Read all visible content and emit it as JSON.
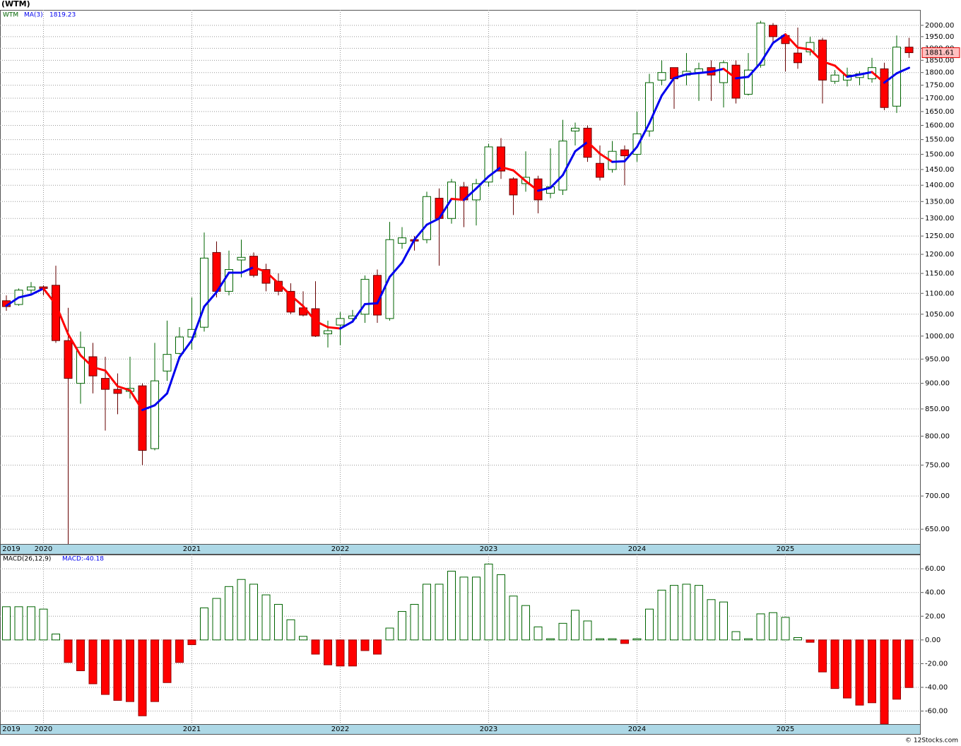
{
  "title": "(WTM)",
  "symbol": "WTM",
  "footer": "© 12Stocks.com",
  "chart_data": [
    {
      "type": "candlestick",
      "categories": [
        "2019",
        null,
        null,
        "2020",
        null,
        null,
        null,
        null,
        null,
        null,
        null,
        null,
        null,
        null,
        null,
        "2021",
        null,
        null,
        null,
        null,
        null,
        null,
        null,
        null,
        null,
        null,
        null,
        "2022",
        null,
        null,
        null,
        null,
        null,
        null,
        null,
        null,
        null,
        null,
        null,
        "2023",
        null,
        null,
        null,
        null,
        null,
        null,
        null,
        null,
        null,
        null,
        null,
        "2024",
        null,
        null,
        null,
        null,
        null,
        null,
        null,
        null,
        null,
        null,
        null,
        "2025",
        null,
        null,
        null,
        null,
        null,
        null,
        null,
        null,
        null,
        null
      ],
      "open": [
        1082,
        1073,
        1108,
        1116,
        1120,
        990,
        900,
        955,
        910,
        888,
        884,
        895,
        778,
        925,
        962,
        998,
        1020,
        1205,
        1105,
        1185,
        1195,
        1160,
        1130,
        1105,
        1065,
        1063,
        1005,
        1025,
        1040,
        1050,
        1145,
        1040,
        1230,
        1240,
        1240,
        1360,
        1300,
        1395,
        1355,
        1410,
        1525,
        1420,
        1405,
        1420,
        1375,
        1385,
        1580,
        1590,
        1470,
        1450,
        1515,
        1500,
        1580,
        1770,
        1820,
        1790,
        1800,
        1820,
        1760,
        1830,
        1715,
        1830,
        2000,
        1955,
        1880,
        1885,
        1935,
        1765,
        1770,
        1780,
        1775,
        1815,
        1670,
        1905
      ],
      "high": [
        1095,
        1112,
        1128,
        1120,
        1170,
        1065,
        1010,
        985,
        955,
        920,
        955,
        900,
        985,
        1035,
        1020,
        1090,
        1260,
        1235,
        1210,
        1240,
        1205,
        1175,
        1150,
        1125,
        1105,
        1130,
        1035,
        1055,
        1060,
        1145,
        1160,
        1290,
        1275,
        1250,
        1380,
        1390,
        1420,
        1410,
        1420,
        1535,
        1555,
        1425,
        1510,
        1430,
        1520,
        1620,
        1610,
        1600,
        1530,
        1545,
        1530,
        1650,
        1795,
        1850,
        1820,
        1880,
        1840,
        1850,
        1850,
        1850,
        1880,
        2020,
        2010,
        1960,
        1990,
        1950,
        1945,
        1810,
        1820,
        1805,
        1860,
        1840,
        1955,
        1945
      ],
      "low": [
        1058,
        1070,
        1100,
        1095,
        985,
        610,
        860,
        880,
        810,
        840,
        870,
        750,
        775,
        905,
        960,
        970,
        1010,
        1090,
        1095,
        1140,
        1140,
        1105,
        1095,
        1050,
        1045,
        998,
        975,
        980,
        1030,
        1030,
        1030,
        1035,
        1215,
        1210,
        1230,
        1170,
        1285,
        1275,
        1280,
        1395,
        1420,
        1310,
        1380,
        1315,
        1360,
        1370,
        1530,
        1475,
        1415,
        1440,
        1400,
        1475,
        1560,
        1750,
        1660,
        1750,
        1690,
        1690,
        1665,
        1680,
        1710,
        1820,
        1920,
        1805,
        1815,
        1870,
        1680,
        1755,
        1745,
        1750,
        1760,
        1655,
        1645,
        1860
      ],
      "close": [
        1068,
        1108,
        1116,
        1112,
        990,
        910,
        975,
        915,
        888,
        880,
        890,
        775,
        905,
        960,
        998,
        1015,
        1190,
        1105,
        1160,
        1192,
        1145,
        1125,
        1105,
        1055,
        1048,
        1000,
        1012,
        1040,
        1046,
        1135,
        1048,
        1240,
        1245,
        1236,
        1365,
        1300,
        1410,
        1355,
        1405,
        1525,
        1445,
        1370,
        1425,
        1355,
        1395,
        1545,
        1590,
        1490,
        1425,
        1510,
        1495,
        1570,
        1760,
        1800,
        1775,
        1805,
        1815,
        1790,
        1840,
        1700,
        1810,
        2010,
        1950,
        1920,
        1840,
        1925,
        1770,
        1790,
        1790,
        1795,
        1820,
        1665,
        1905,
        1881.61
      ],
      "up_color": "#006400",
      "down_color": "#ff0000",
      "ma": {
        "name": "MA(3)",
        "up_color": "#0000ee",
        "down_color": "#ff0000",
        "values": [
          1070,
          1090,
          1097,
          1112,
          1073,
          1004,
          958,
          933,
          926,
          894,
          886,
          848,
          857,
          880,
          954,
          991,
          1068,
          1103,
          1152,
          1152,
          1166,
          1154,
          1125,
          1095,
          1069,
          1034,
          1020,
          1017,
          1033,
          1074,
          1076,
          1141,
          1178,
          1240,
          1282,
          1300,
          1358,
          1355,
          1390,
          1428,
          1458,
          1447,
          1413,
          1383,
          1392,
          1432,
          1510,
          1542,
          1502,
          1475,
          1477,
          1525,
          1608,
          1710,
          1778,
          1793,
          1798,
          1803,
          1815,
          1777,
          1783,
          1840,
          1923,
          1960,
          1903,
          1895,
          1845,
          1828,
          1783,
          1792,
          1802,
          1760,
          1797,
          1819.23
        ]
      },
      "ylim": [
        629,
        2070
      ],
      "log_scale": true,
      "grid": true,
      "yticks": [
        {
          "value": 650,
          "label": "650.00"
        },
        {
          "value": 700,
          "label": "700.00"
        },
        {
          "value": 750,
          "label": "750.00"
        },
        {
          "value": 800,
          "label": "800.00"
        },
        {
          "value": 850,
          "label": "850.00"
        },
        {
          "value": 900,
          "label": "900.00"
        },
        {
          "value": 950,
          "label": "950.00"
        },
        {
          "value": 1000,
          "label": "1000.00"
        },
        {
          "value": 1050,
          "label": "1050.00"
        },
        {
          "value": 1100,
          "label": "1100.00"
        },
        {
          "value": 1150,
          "label": "1150.00"
        },
        {
          "value": 1200,
          "label": "1200.00"
        },
        {
          "value": 1250,
          "label": "1250.00"
        },
        {
          "value": 1300,
          "label": "1300.00"
        },
        {
          "value": 1350,
          "label": "1350.00"
        },
        {
          "value": 1400,
          "label": "1400.00"
        },
        {
          "value": 1450,
          "label": "1450.00"
        },
        {
          "value": 1500,
          "label": "1500.00"
        },
        {
          "value": 1550,
          "label": "1550.00"
        },
        {
          "value": 1600,
          "label": "1600.00"
        },
        {
          "value": 1650,
          "label": "1650.00"
        },
        {
          "value": 1700,
          "label": "1700.00"
        },
        {
          "value": 1750,
          "label": "1750.00"
        },
        {
          "value": 1800,
          "label": "1800.00"
        },
        {
          "value": 1850,
          "label": "1850.00"
        },
        {
          "value": 1900,
          "label": "1900.00"
        },
        {
          "value": 1950,
          "label": "1950.00"
        },
        {
          "value": 2000,
          "label": "2000.00"
        }
      ]
    },
    {
      "type": "bar",
      "name": "MACD(26,12,9)",
      "value_label": "MACD:-40.18",
      "categories": [
        "2019",
        null,
        null,
        "2020",
        null,
        null,
        null,
        null,
        null,
        null,
        null,
        null,
        null,
        null,
        null,
        "2021",
        null,
        null,
        null,
        null,
        null,
        null,
        null,
        null,
        null,
        null,
        null,
        "2022",
        null,
        null,
        null,
        null,
        null,
        null,
        null,
        null,
        null,
        null,
        null,
        "2023",
        null,
        null,
        null,
        null,
        null,
        null,
        null,
        null,
        null,
        null,
        null,
        "2024",
        null,
        null,
        null,
        null,
        null,
        null,
        null,
        null,
        null,
        null,
        null,
        "2025",
        null,
        null,
        null,
        null,
        null,
        null,
        null,
        null,
        null,
        null
      ],
      "values": [
        28,
        28,
        28,
        26,
        5,
        -19,
        -26,
        -37,
        -46,
        -51,
        -52,
        -64,
        -52,
        -36,
        -19,
        -4,
        27,
        35,
        45,
        51,
        47,
        38,
        30,
        17,
        3,
        -12,
        -21,
        -22,
        -22,
        -9,
        -12,
        10,
        24,
        30,
        47,
        47,
        58,
        53,
        53,
        64,
        55,
        37,
        29,
        11,
        1,
        14,
        25,
        16,
        1,
        1,
        -3,
        1,
        26,
        42,
        46,
        47,
        46,
        34,
        32,
        7,
        1,
        22,
        23,
        19,
        2,
        -2,
        -27,
        -41,
        -49,
        -55,
        -53,
        -71,
        -50,
        -40.18
      ],
      "pos_color": "#006400",
      "neg_color": "#ff0000",
      "ylim": [
        -71,
        72
      ],
      "grid": true,
      "yticks": [
        {
          "value": 60,
          "label": "60.00"
        },
        {
          "value": 40,
          "label": "40.00"
        },
        {
          "value": 20,
          "label": "20.00"
        },
        {
          "value": 0,
          "label": "0.00"
        },
        {
          "value": -20,
          "label": "-20.00"
        },
        {
          "value": -40,
          "label": "-40.00"
        },
        {
          "value": -60,
          "label": "-60.00"
        }
      ]
    }
  ]
}
